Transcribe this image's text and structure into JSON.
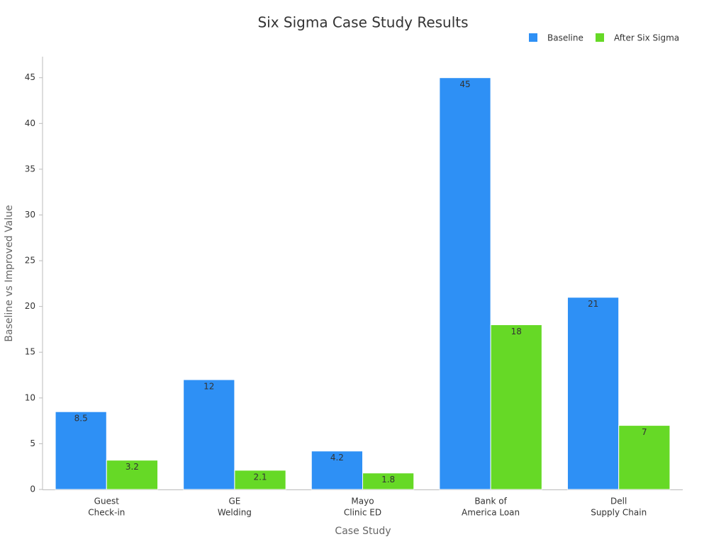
{
  "chart_data": {
    "type": "grouped_bar",
    "title": "Six Sigma Case Study Results",
    "x_label": "Case Study",
    "y_label": "Baseline vs Improved Value",
    "categories": [
      [
        "Guest",
        "Check-in"
      ],
      [
        "GE",
        "Welding"
      ],
      [
        "Mayo",
        "Clinic ED"
      ],
      [
        "Bank of",
        "America Loan"
      ],
      [
        "Dell",
        "Supply Chain"
      ]
    ],
    "series": [
      {
        "name": "Baseline",
        "color": "#2e90f5",
        "values": [
          8.5,
          12,
          4.2,
          45,
          21
        ]
      },
      {
        "name": "After Six Sigma",
        "color": "#66d926",
        "values": [
          3.2,
          2.1,
          1.8,
          18,
          7
        ]
      }
    ],
    "ylim": [
      0,
      47.3
    ],
    "yticks": [
      0,
      5,
      10,
      15,
      20,
      25,
      30,
      35,
      40,
      45
    ],
    "grid": false,
    "legend": "top-right"
  }
}
